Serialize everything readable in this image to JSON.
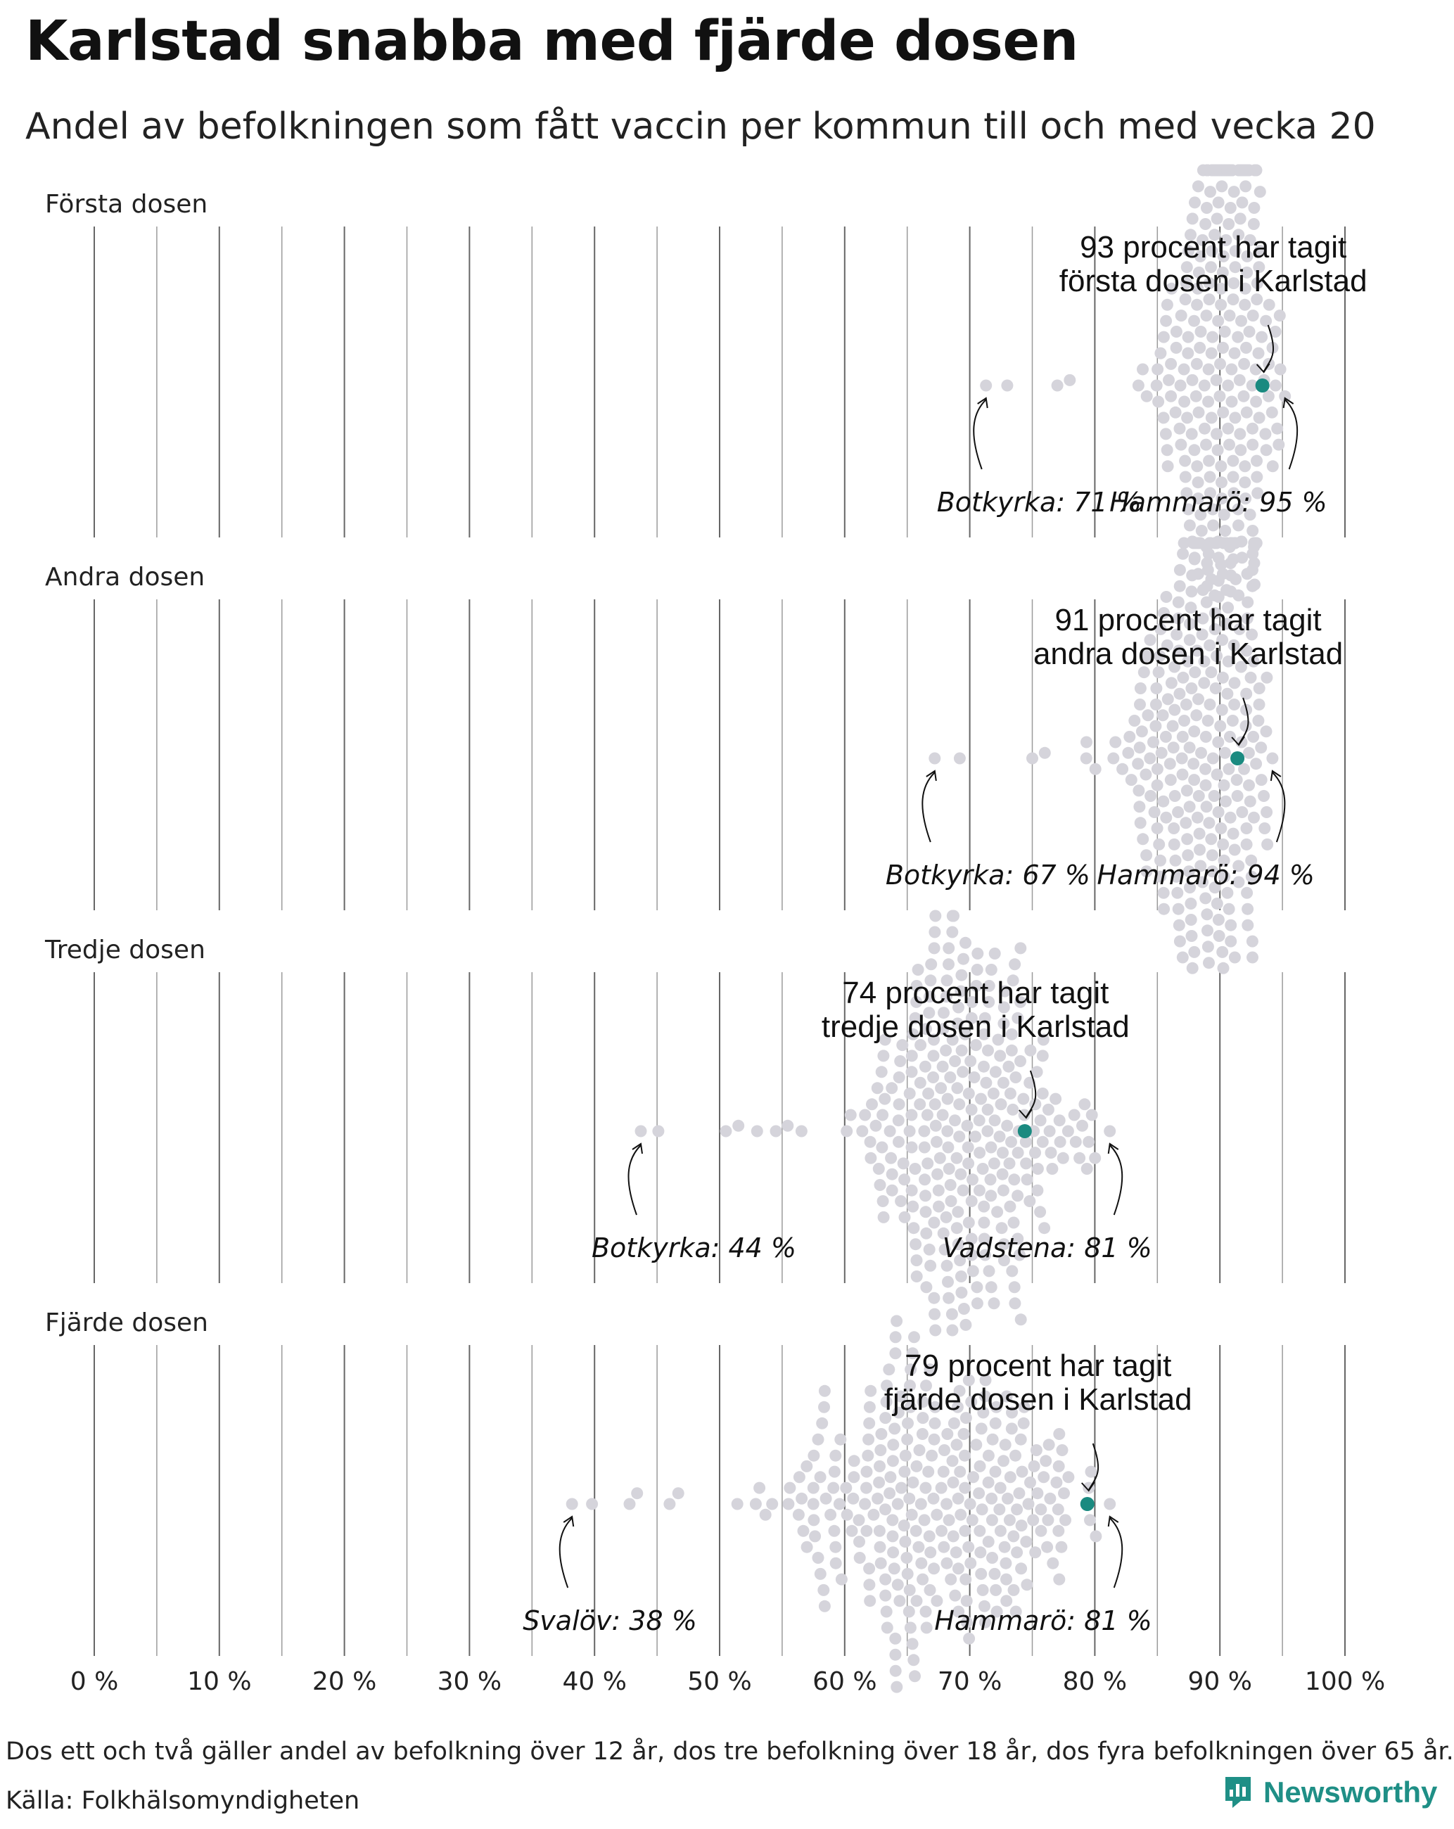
{
  "title": "Karlstad snabba med fjärde dosen",
  "subtitle": "Andel av befolkningen som fått vaccin per kommun till och med vecka 20",
  "footnote": "Dos ett och två gäller andel av befolkning över 12 år, dos tre befolkning över 18 år, dos fyra befolkningen över 65 år.",
  "source": "Källa: Folkhälsomyndigheten",
  "brand": {
    "name": "Newsworthy",
    "icon": "newsworthy-logo-icon"
  },
  "colors": {
    "dot": "#d5d4db",
    "highlight": "#1a8a80",
    "grid": "#777777",
    "brand": "#1f8f86"
  },
  "chart_data": {
    "type": "scatter",
    "subtype": "beeswarm",
    "xlim": [
      0,
      100
    ],
    "x_ticks": [
      0,
      10,
      20,
      30,
      40,
      50,
      60,
      70,
      80,
      90,
      100
    ],
    "x_tick_labels": [
      "0 %",
      "10 %",
      "20 %",
      "30 %",
      "40 %",
      "50 %",
      "60 %",
      "70 %",
      "80 %",
      "90 %",
      "100 %"
    ],
    "grid": true,
    "panels": [
      {
        "label": "Första dosen",
        "highlight": {
          "name": "Karlstad",
          "value": 93,
          "text": [
            "93 procent har tagit",
            "första dosen i Karlstad"
          ]
        },
        "min": {
          "name": "Botkyrka",
          "value": 71,
          "text": "Botkyrka: 71 %"
        },
        "max": {
          "name": "Hammarö",
          "value": 95,
          "text": "Hammarö: 95 %"
        },
        "distribution": {
          "center": 90.7,
          "sd": 2.6,
          "tail_low": [
            71.3,
            73.0,
            77.0,
            78.0
          ]
        }
      },
      {
        "label": "Andra dosen",
        "highlight": {
          "name": "Karlstad",
          "value": 91,
          "text": [
            "91 procent har tagit",
            "andra dosen i Karlstad"
          ]
        },
        "min": {
          "name": "Botkyrka",
          "value": 67,
          "text": "Botkyrka: 67 %"
        },
        "max": {
          "name": "Hammarö",
          "value": 94,
          "text": "Hammarö: 94 %"
        },
        "distribution": {
          "center": 88.6,
          "sd": 3.0,
          "tail_low": [
            67.2,
            69.2,
            75.0,
            76.0
          ]
        }
      },
      {
        "label": "Tredje dosen",
        "highlight": {
          "name": "Karlstad",
          "value": 74,
          "text": [
            "74 procent har tagit",
            "tredje dosen i Karlstad"
          ]
        },
        "min": {
          "name": "Botkyrka",
          "value": 44,
          "text": "Botkyrka: 44 %"
        },
        "max": {
          "name": "Vadstena",
          "value": 81,
          "text": "Vadstena: 81 %"
        },
        "distribution": {
          "center": 69.5,
          "sd": 4.2,
          "tail_low": [
            43.7,
            45.1,
            50.5,
            51.5,
            53.0,
            54.5
          ]
        }
      },
      {
        "label": "Fjärde dosen",
        "highlight": {
          "name": "Karlstad",
          "value": 79,
          "text": [
            "79 procent har tagit",
            "fjärde dosen i Karlstad"
          ]
        },
        "min": {
          "name": "Svalöv",
          "value": 38,
          "text": "Svalöv: 38 %"
        },
        "max": {
          "name": "Hammarö",
          "value": 81,
          "text": "Hammarö: 81 %"
        },
        "distribution": {
          "center": 67.5,
          "sd": 6.5,
          "tail_low": [
            38.2,
            39.8,
            42.8,
            43.4,
            46.0
          ]
        }
      }
    ]
  }
}
